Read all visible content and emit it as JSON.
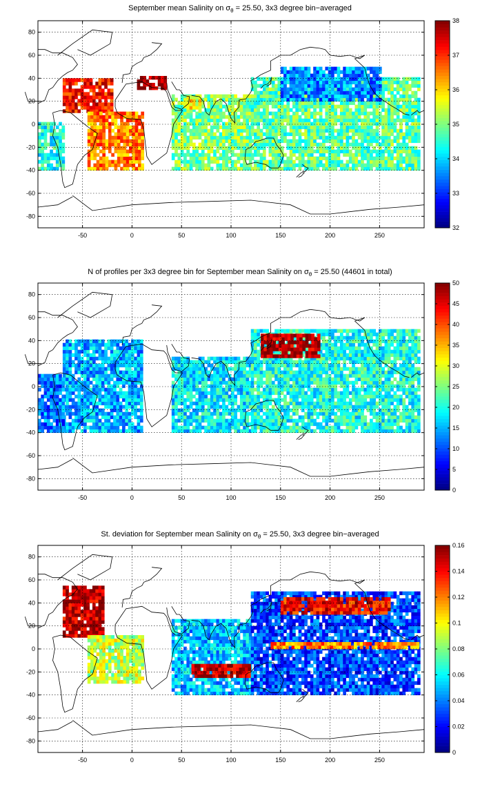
{
  "chart_data": [
    {
      "type": "heatmap",
      "title_main": "September mean Salinity on σ",
      "title_sub": "θ",
      "title_tail": " = 25.50, 3x3 degree bin−averaged",
      "xlim": [
        -95,
        295
      ],
      "ylim": [
        -90,
        90
      ],
      "xticks": [
        -50,
        0,
        50,
        100,
        150,
        200,
        250
      ],
      "yticks": [
        80,
        60,
        40,
        20,
        0,
        -20,
        -40,
        -60,
        -80
      ],
      "grid": true,
      "colorbar": {
        "min": 32,
        "max": 38,
        "ticks": [
          38,
          37,
          36,
          35,
          34,
          33,
          32
        ]
      },
      "colormap": "jet",
      "regions": [
        {
          "lon": [
            -70,
            -20
          ],
          "lat": [
            10,
            40
          ],
          "value": 37.2
        },
        {
          "lon": [
            -45,
            10
          ],
          "lat": [
            -40,
            10
          ],
          "value": 36.5
        },
        {
          "lon": [
            5,
            35
          ],
          "lat": [
            30,
            42
          ],
          "value": 37.8
        },
        {
          "lon": [
            40,
            120
          ],
          "lat": [
            -40,
            25
          ],
          "value": 35.0
        },
        {
          "lon": [
            55,
            70
          ],
          "lat": [
            10,
            25
          ],
          "value": 35.8
        },
        {
          "lon": [
            120,
            290
          ],
          "lat": [
            -40,
            40
          ],
          "value": 34.8
        },
        {
          "lon": [
            150,
            250
          ],
          "lat": [
            20,
            50
          ],
          "value": 33.6
        },
        {
          "lon": [
            -95,
            -70
          ],
          "lat": [
            -40,
            0
          ],
          "value": 34.4
        }
      ]
    },
    {
      "type": "heatmap",
      "title_main": "N of profiles per 3x3 degree bin for September mean Salinity on σ",
      "title_sub": "θ",
      "title_tail": " = 25.50 (44601 in total)",
      "xlim": [
        -95,
        295
      ],
      "ylim": [
        -90,
        90
      ],
      "xticks": [
        -50,
        0,
        50,
        100,
        150,
        200,
        250
      ],
      "yticks": [
        80,
        60,
        40,
        20,
        0,
        -20,
        -40,
        -60,
        -80
      ],
      "grid": true,
      "colorbar": {
        "min": 0,
        "max": 50,
        "ticks": [
          50,
          45,
          40,
          35,
          30,
          25,
          20,
          15,
          10,
          5,
          0
        ]
      },
      "colormap": "jet",
      "regions": [
        {
          "lon": [
            -70,
            10
          ],
          "lat": [
            -40,
            40
          ],
          "value": 15
        },
        {
          "lon": [
            40,
            120
          ],
          "lat": [
            -40,
            25
          ],
          "value": 18
        },
        {
          "lon": [
            120,
            290
          ],
          "lat": [
            -40,
            50
          ],
          "value": 20
        },
        {
          "lon": [
            130,
            190
          ],
          "lat": [
            25,
            45
          ],
          "value": 48
        },
        {
          "lon": [
            -95,
            -70
          ],
          "lat": [
            -40,
            10
          ],
          "value": 12
        }
      ]
    },
    {
      "type": "heatmap",
      "title_main": "St. deviation for September mean Salinity on σ",
      "title_sub": "θ",
      "title_tail": " = 25.50, 3x3 degree bin−averaged",
      "xlim": [
        -95,
        295
      ],
      "ylim": [
        -90,
        90
      ],
      "xticks": [
        -50,
        0,
        50,
        100,
        150,
        200,
        250
      ],
      "yticks": [
        80,
        60,
        40,
        20,
        0,
        -20,
        -40,
        -60,
        -80
      ],
      "grid": true,
      "colorbar": {
        "min": 0,
        "max": 0.16,
        "ticks": [
          0.16,
          0.14,
          0.12,
          0.1,
          0.08,
          0.06,
          0.04,
          0.02,
          0
        ]
      },
      "colormap": "jet",
      "regions": [
        {
          "lon": [
            -70,
            -30
          ],
          "lat": [
            10,
            55
          ],
          "value": 0.15
        },
        {
          "lon": [
            -45,
            10
          ],
          "lat": [
            -30,
            10
          ],
          "value": 0.09
        },
        {
          "lon": [
            40,
            120
          ],
          "lat": [
            -40,
            25
          ],
          "value": 0.05
        },
        {
          "lon": [
            60,
            120
          ],
          "lat": [
            -25,
            -15
          ],
          "value": 0.15
        },
        {
          "lon": [
            120,
            290
          ],
          "lat": [
            -40,
            50
          ],
          "value": 0.03
        },
        {
          "lon": [
            150,
            260
          ],
          "lat": [
            30,
            45
          ],
          "value": 0.14
        },
        {
          "lon": [
            140,
            290
          ],
          "lat": [
            0,
            5
          ],
          "value": 0.12
        }
      ]
    }
  ]
}
